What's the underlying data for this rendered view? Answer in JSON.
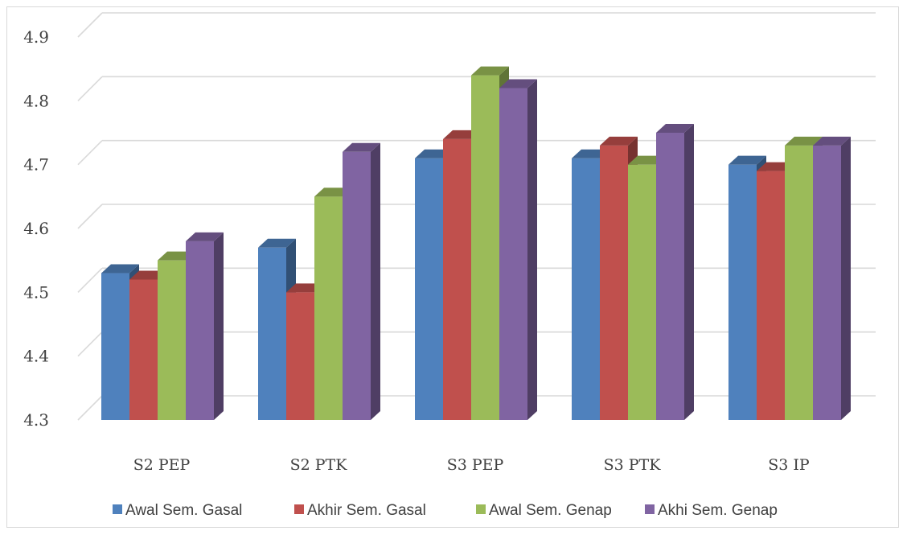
{
  "chart_data": {
    "type": "bar",
    "title": "",
    "xlabel": "",
    "ylabel": "",
    "ylim": [
      4.3,
      4.9
    ],
    "yticks": [
      4.3,
      4.4,
      4.5,
      4.6,
      4.7,
      4.8,
      4.9
    ],
    "ytick_labels": [
      "4.3",
      "4.4",
      "4.5",
      "4.6",
      "4.7",
      "4.8",
      "4.9"
    ],
    "grid": true,
    "legend_position": "bottom",
    "style": "3d-clustered-column",
    "categories": [
      "S2 PEP",
      "S2 PTK",
      "S3 PEP",
      "S3 PTK",
      "S3 IP"
    ],
    "series": [
      {
        "name": "Awal Sem. Gasal",
        "color": "#4f81bd",
        "values": [
          4.53,
          4.57,
          4.71,
          4.71,
          4.7
        ]
      },
      {
        "name": "Akhir Sem. Gasal",
        "color": "#c0504d",
        "values": [
          4.52,
          4.5,
          4.74,
          4.73,
          4.69
        ]
      },
      {
        "name": "Awal Sem. Genap",
        "color": "#9bbb59",
        "values": [
          4.55,
          4.65,
          4.84,
          4.7,
          4.73
        ]
      },
      {
        "name": "Akhi Sem. Genap",
        "color": "#8064a2",
        "values": [
          4.58,
          4.72,
          4.82,
          4.75,
          4.73
        ]
      }
    ]
  }
}
